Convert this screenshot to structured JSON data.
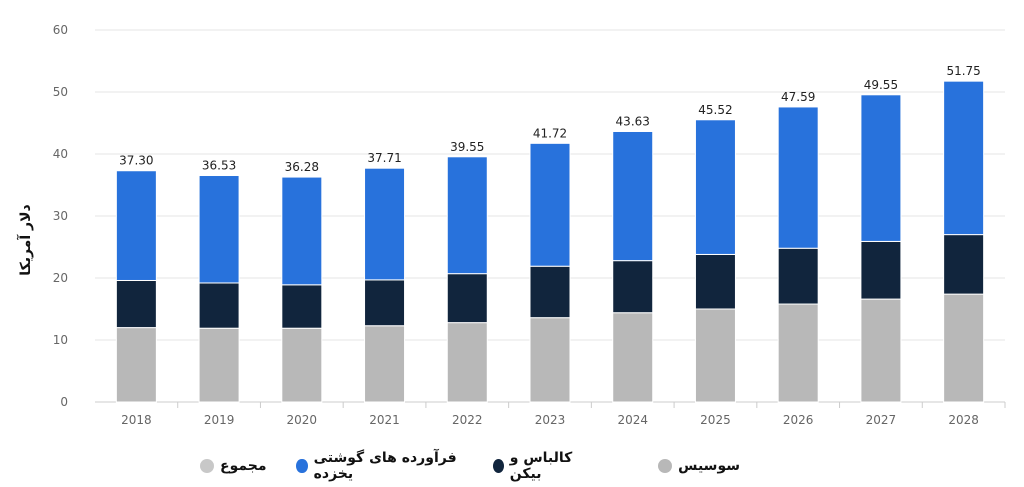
{
  "chart_data": {
    "type": "bar",
    "stacked": true,
    "title": "",
    "xlabel": "",
    "ylabel": "دلار آمریکا",
    "ylim": [
      0,
      60
    ],
    "yticks": [
      0,
      10,
      20,
      30,
      40,
      50,
      60
    ],
    "grid": true,
    "legend_position": "bottom",
    "categories": [
      "2018",
      "2019",
      "2020",
      "2021",
      "2022",
      "2023",
      "2024",
      "2025",
      "2026",
      "2027",
      "2028"
    ],
    "series": [
      {
        "name": "سوسیس",
        "color": "#b8b8b8",
        "values": [
          12.0,
          11.9,
          11.9,
          12.3,
          12.8,
          13.6,
          14.4,
          15.0,
          15.8,
          16.6,
          17.4
        ]
      },
      {
        "name": "کالباس و بیکن",
        "color": "#11253d",
        "values": [
          7.6,
          7.3,
          7.0,
          7.4,
          7.9,
          8.3,
          8.4,
          8.8,
          9.0,
          9.3,
          9.6
        ]
      },
      {
        "name": "فرآورده های گوشتی یخزده",
        "color": "#2872dc",
        "values": [
          17.7,
          17.33,
          17.38,
          18.01,
          18.85,
          19.82,
          20.83,
          21.72,
          22.79,
          23.65,
          24.75
        ]
      }
    ],
    "totals": {
      "name": "مجموع",
      "color": "#c8c8c8",
      "labels": [
        "37.30",
        "36.53",
        "36.28",
        "37.71",
        "39.55",
        "41.72",
        "43.63",
        "45.52",
        "47.59",
        "49.55",
        "51.75"
      ]
    }
  }
}
